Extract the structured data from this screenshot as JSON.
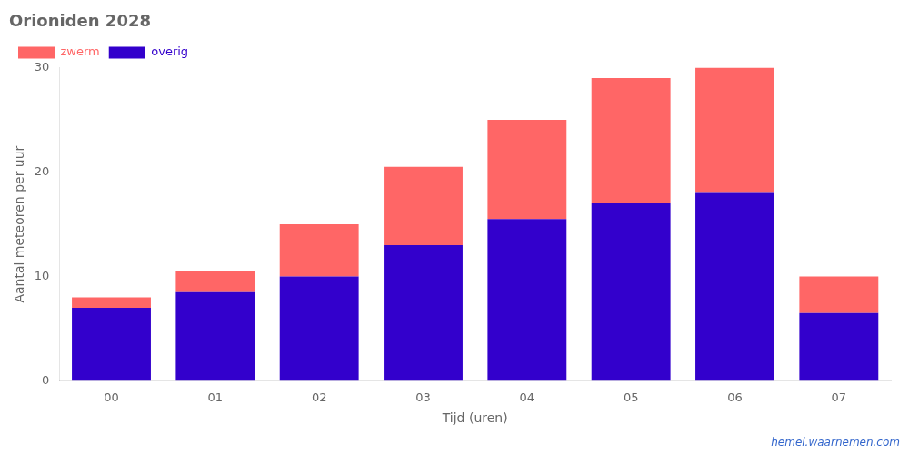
{
  "chart_data": {
    "type": "bar",
    "title": "Orioniden 2028",
    "x_label": "Tijd (uren)",
    "y_label": "Aantal meteoren per uur",
    "categories": [
      "00",
      "01",
      "02",
      "03",
      "04",
      "05",
      "06",
      "07"
    ],
    "series": [
      {
        "name": "overig",
        "color": "#3300cc",
        "values": [
          7.0,
          8.5,
          10.0,
          13.0,
          15.5,
          17.0,
          18.0,
          6.5
        ]
      },
      {
        "name": "zwerm",
        "color": "#ff6666",
        "values": [
          1.0,
          2.0,
          5.0,
          7.5,
          9.5,
          12.0,
          12.0,
          3.5
        ]
      }
    ],
    "stacked": true,
    "ylim": [
      0,
      30
    ],
    "yticks": [
      0,
      10,
      20,
      30
    ],
    "grid": false,
    "legend": "upper left",
    "annotations": [
      {
        "text": "hemel.waarnemen.com",
        "color": "#3366cc"
      }
    ]
  }
}
